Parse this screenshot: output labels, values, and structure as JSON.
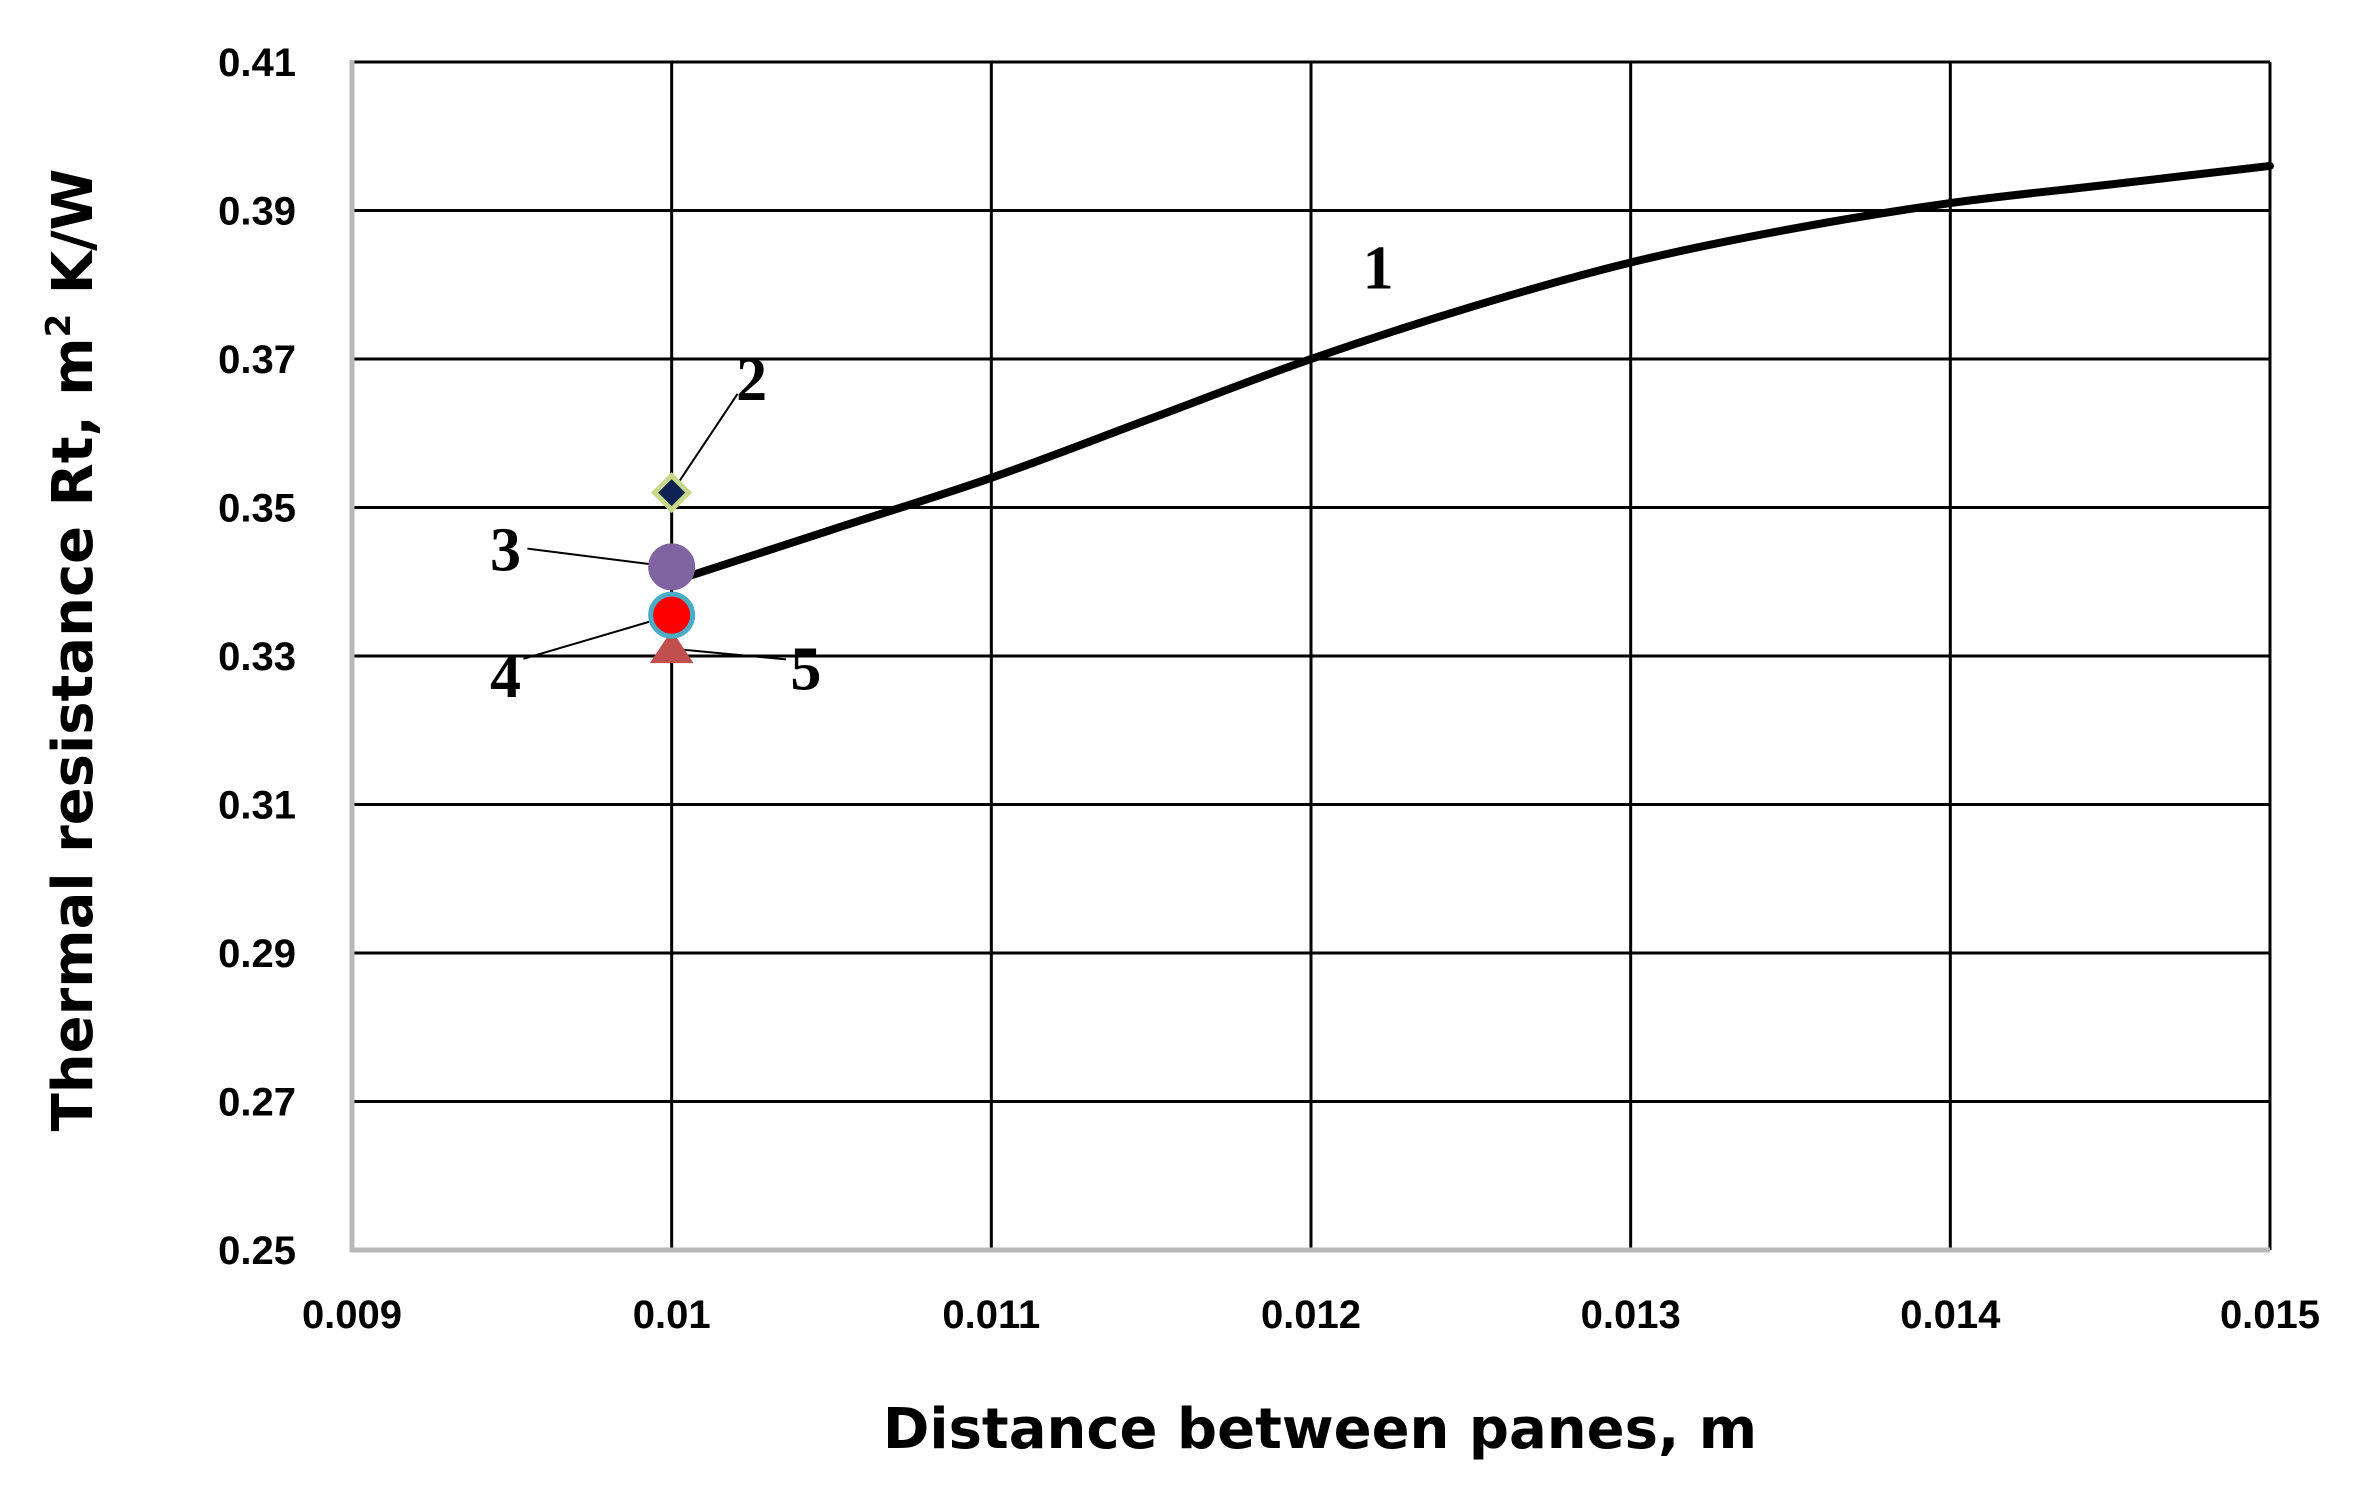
{
  "chart_data": {
    "type": "line",
    "title": "",
    "xlabel": "Distance between panes, m",
    "ylabel_main": "Thermal resistance Rt, m",
    "ylabel_sup": "2",
    "ylabel_tail": " K/W",
    "xlim": [
      0.009,
      0.015
    ],
    "ylim": [
      0.25,
      0.41
    ],
    "x_ticks": [
      {
        "value": 0.009,
        "label": "0.009"
      },
      {
        "value": 0.01,
        "label": "0.01"
      },
      {
        "value": 0.011,
        "label": "0.011"
      },
      {
        "value": 0.012,
        "label": "0.012"
      },
      {
        "value": 0.013,
        "label": "0.013"
      },
      {
        "value": 0.014,
        "label": "0.014"
      },
      {
        "value": 0.015,
        "label": "0.015"
      }
    ],
    "y_ticks": [
      {
        "value": 0.25,
        "label": "0.25"
      },
      {
        "value": 0.27,
        "label": "0.27"
      },
      {
        "value": 0.29,
        "label": "0.29"
      },
      {
        "value": 0.31,
        "label": "0.31"
      },
      {
        "value": 0.33,
        "label": "0.33"
      },
      {
        "value": 0.35,
        "label": "0.35"
      },
      {
        "value": 0.37,
        "label": "0.37"
      },
      {
        "value": 0.39,
        "label": "0.39"
      },
      {
        "value": 0.41,
        "label": "0.41"
      }
    ],
    "grid": true,
    "legend": "none",
    "series": [
      {
        "label": "1",
        "kind": "line",
        "color": "#000000",
        "x": [
          0.01,
          0.0105,
          0.011,
          0.0115,
          0.012,
          0.0125,
          0.013,
          0.0135,
          0.014,
          0.0145,
          0.015
        ],
        "y": [
          0.34,
          0.347,
          0.354,
          0.362,
          0.37,
          0.377,
          0.383,
          0.3875,
          0.391,
          0.3935,
          0.396
        ]
      },
      {
        "label": "2",
        "kind": "point",
        "marker": "diamond",
        "color": "#0d2452",
        "edge_color": "#c8d88a",
        "x": [
          0.01
        ],
        "y": [
          0.352
        ]
      },
      {
        "label": "3",
        "kind": "point",
        "marker": "circle",
        "color": "#8064a2",
        "edge_color": "#8064a2",
        "x": [
          0.01
        ],
        "y": [
          0.342
        ]
      },
      {
        "label": "4",
        "kind": "point",
        "marker": "circle",
        "color": "#ff0000",
        "edge_color": "#4bacc6",
        "x": [
          0.01
        ],
        "y": [
          0.3355
        ]
      },
      {
        "label": "5",
        "kind": "point",
        "marker": "triangle",
        "color": "#c0504d",
        "edge_color": "#c0504d",
        "x": [
          0.01
        ],
        "y": [
          0.331
        ]
      }
    ],
    "annotations": [
      {
        "text": "1",
        "x": 0.01221,
        "y": 0.3795
      },
      {
        "text": "2",
        "x": 0.01025,
        "y": 0.3645
      },
      {
        "text": "3",
        "x": 0.00948,
        "y": 0.3415
      },
      {
        "text": "4",
        "x": 0.00948,
        "y": 0.3245
      },
      {
        "text": "5",
        "x": 0.01042,
        "y": 0.3255
      }
    ]
  }
}
